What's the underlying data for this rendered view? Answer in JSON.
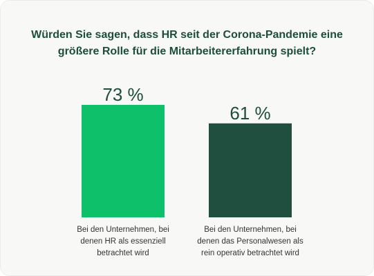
{
  "title_lines": [
    "Würden Sie sagen, dass HR seit der Corona-Pandemie eine",
    "größere Rolle für die Mitarbeitererfahrung spielt?"
  ],
  "chart_data": {
    "type": "bar",
    "title": "Würden Sie sagen, dass HR seit der Corona-Pandemie eine größere Rolle für die Mitarbeitererfahrung spielt?",
    "categories": [
      "Bei den Unternehmen, bei denen HR als essenziell betrachtet wird",
      "Bei den Unternehmen, bei denen das Personalwesen als rein operativ betrachtet wird"
    ],
    "category_lines": [
      [
        "Bei den Unternehmen, bei",
        "denen HR als essenziell",
        "betrachtet wird"
      ],
      [
        "Bei den Unternehmen, bei",
        "denen das Personalwesen als",
        "rein operativ betrachtet wird"
      ]
    ],
    "values": [
      73,
      61
    ],
    "value_labels": [
      "73 %",
      "61 %"
    ],
    "unit": "%",
    "colors": [
      "#0fc06a",
      "#214f3f"
    ],
    "grid": false,
    "legend": "none",
    "xlabel": "",
    "ylabel": ""
  }
}
